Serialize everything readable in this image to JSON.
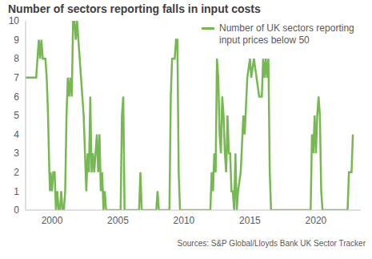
{
  "chart_data": {
    "type": "line",
    "title": "Number of sectors reporting falls in input costs",
    "source": "Sources: S&P Global/Lloyds Bank UK Sector Tracker",
    "x": [
      1998.0,
      1998.8,
      1998.9,
      1999.0,
      1999.1,
      1999.2,
      1999.3,
      1999.5,
      1999.6,
      1999.7,
      1999.8,
      1999.85,
      1999.9,
      2000.0,
      2000.1,
      2000.2,
      2000.3,
      2000.4,
      2000.5,
      2000.6,
      2000.7,
      2000.8,
      2000.9,
      2001.0,
      2001.1,
      2001.2,
      2001.3,
      2001.4,
      2001.5,
      2001.6,
      2001.7,
      2001.8,
      2001.9,
      2002.0,
      2002.1,
      2002.2,
      2002.4,
      2002.5,
      2002.6,
      2002.7,
      2002.8,
      2002.9,
      2003.0,
      2003.1,
      2003.2,
      2003.3,
      2003.4,
      2003.5,
      2003.6,
      2003.7,
      2003.8,
      2003.9,
      2004.0,
      2004.1,
      2005.2,
      2005.3,
      2005.4,
      2005.5,
      2006.6,
      2006.7,
      2006.8,
      2007.9,
      2008.0,
      2008.1,
      2008.9,
      2009.0,
      2009.1,
      2009.3,
      2009.4,
      2009.5,
      2009.6,
      2009.7,
      2012.0,
      2012.1,
      2012.2,
      2012.3,
      2012.4,
      2012.5,
      2012.6,
      2012.7,
      2012.8,
      2012.9,
      2013.0,
      2013.1,
      2013.2,
      2013.3,
      2013.4,
      2013.5,
      2013.6,
      2013.7,
      2013.8,
      2013.9,
      2014.0,
      2014.1,
      2014.3,
      2014.5,
      2014.6,
      2014.8,
      2015.0,
      2015.1,
      2015.3,
      2015.5,
      2015.7,
      2015.9,
      2016.0,
      2016.1,
      2016.2,
      2016.3,
      2016.4,
      2016.5,
      2016.6,
      2019.6,
      2019.7,
      2019.8,
      2019.9,
      2020.0,
      2020.1,
      2020.2,
      2020.3,
      2020.4,
      2020.5,
      2022.4,
      2022.5,
      2022.7,
      2022.8
    ],
    "series": [
      {
        "name": "Number of UK sectors reporting input prices below 50",
        "color": "#76b852",
        "values": [
          7,
          7,
          8,
          9,
          8,
          9,
          8,
          8,
          7,
          5,
          2,
          1,
          2,
          1,
          2,
          2,
          0,
          1,
          0,
          0,
          1,
          0,
          0,
          1,
          5,
          7,
          6,
          7,
          6,
          10,
          10,
          9,
          10,
          9,
          8,
          7,
          5,
          3,
          1,
          3,
          2,
          6,
          2,
          3,
          2,
          3,
          4,
          2,
          4,
          1,
          2,
          0,
          1,
          0,
          0,
          5,
          6,
          0,
          0,
          2,
          0,
          0,
          1,
          0,
          0,
          6,
          8,
          8,
          9,
          9,
          2,
          0,
          0,
          2,
          1,
          3,
          2,
          8,
          7,
          4,
          3,
          6,
          5,
          3,
          2,
          5,
          3,
          3,
          1,
          1,
          0,
          3,
          0,
          1,
          2,
          5,
          4,
          7,
          8,
          7,
          8,
          7,
          6,
          6,
          8,
          7,
          8,
          7,
          8,
          2,
          0,
          0,
          4,
          3,
          5,
          3,
          5,
          6,
          5,
          1,
          0,
          0,
          2,
          2,
          4
        ]
      }
    ],
    "xlim": [
      1998,
      2023.4
    ],
    "xticks": [
      2000,
      2005,
      2010,
      2015,
      2020
    ],
    "ylim": [
      0,
      10
    ],
    "yticks": [
      0,
      1,
      2,
      3,
      4,
      5,
      6,
      7,
      8,
      9,
      10
    ],
    "grid": false,
    "legend": "upper right"
  }
}
